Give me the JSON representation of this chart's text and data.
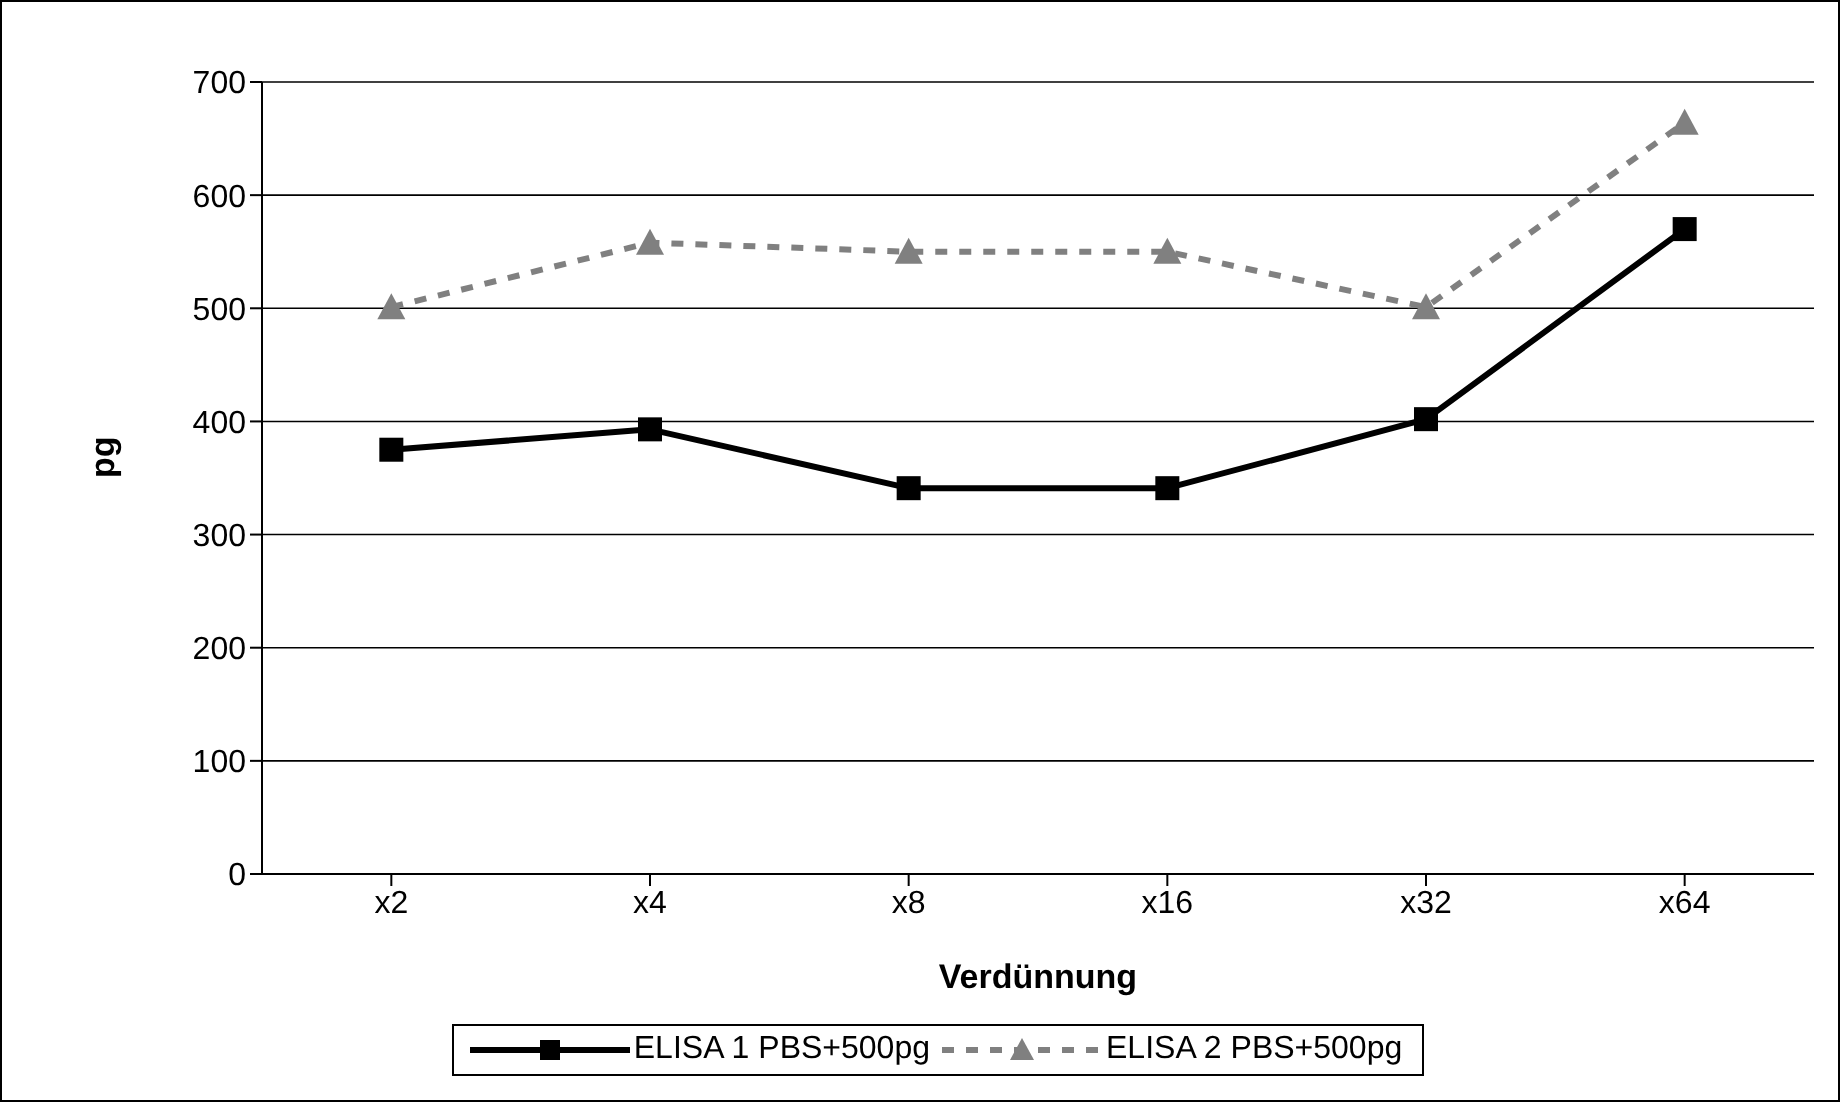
{
  "chart_data": {
    "type": "line",
    "xlabel": "Verdünnung",
    "ylabel": "pg",
    "categories": [
      "x2",
      "x4",
      "x8",
      "x16",
      "x32",
      "x64"
    ],
    "series": [
      {
        "name": "ELISA 1 PBS+500pg",
        "color": "#000000",
        "marker": "square",
        "line_style": "solid",
        "values": [
          375,
          393,
          341,
          341,
          402,
          570
        ]
      },
      {
        "name": "ELISA 2 PBS+500pg",
        "color": "#808080",
        "marker": "triangle",
        "line_style": "dashed",
        "values": [
          501,
          558,
          550,
          550,
          501,
          664
        ]
      }
    ],
    "ylim": [
      0,
      700
    ],
    "yticks": [
      0,
      100,
      200,
      300,
      400,
      500,
      600,
      700
    ],
    "grid": "y",
    "legend": "bottom"
  }
}
